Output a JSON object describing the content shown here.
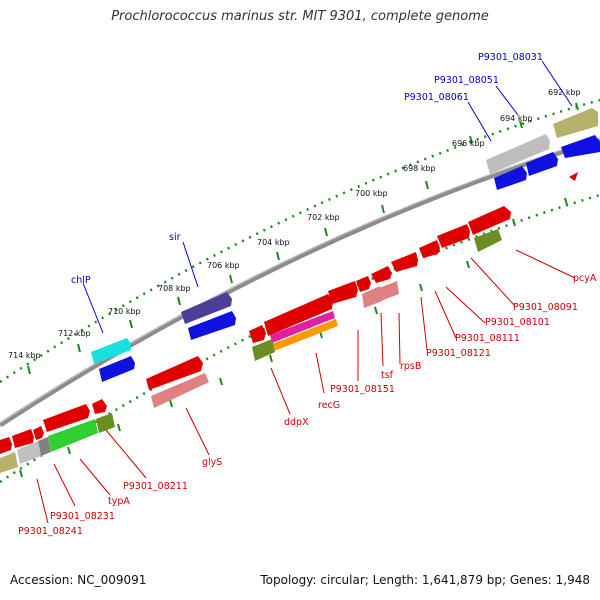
{
  "title": "Prochlorococcus marinus str. MIT 9301, complete genome",
  "footer": {
    "accession": "Accession: NC_009091",
    "summary": "Topology: circular; Length: 1,641,879 bp; Genes: 1,948"
  },
  "colors": {
    "backbone": "#8a8a8a",
    "tick_green": "#1b8a1b",
    "label_blue": "#0000cc",
    "label_red": "#cc0000"
  },
  "ticks": [
    "692 kbp",
    "694 kbp",
    "696 kbp",
    "698 kbp",
    "700 kbp",
    "702 kbp",
    "704 kbp",
    "706 kbp",
    "708 kbp",
    "710 kbp",
    "712 kbp",
    "714 kbp"
  ],
  "labels_top": [
    "P9301_08031",
    "P9301_08051",
    "P9301_08061",
    "sir",
    "chlP"
  ],
  "labels_bottom": [
    "pcyA",
    "P9301_08091",
    "P9301_08101",
    "P9301_08111",
    "P9301_08121",
    "rpsB",
    "tsf",
    "P9301_08151",
    "recG",
    "ddpX",
    "glyS",
    "P9301_08211",
    "typA",
    "P9301_08231",
    "P9301_08241"
  ]
}
